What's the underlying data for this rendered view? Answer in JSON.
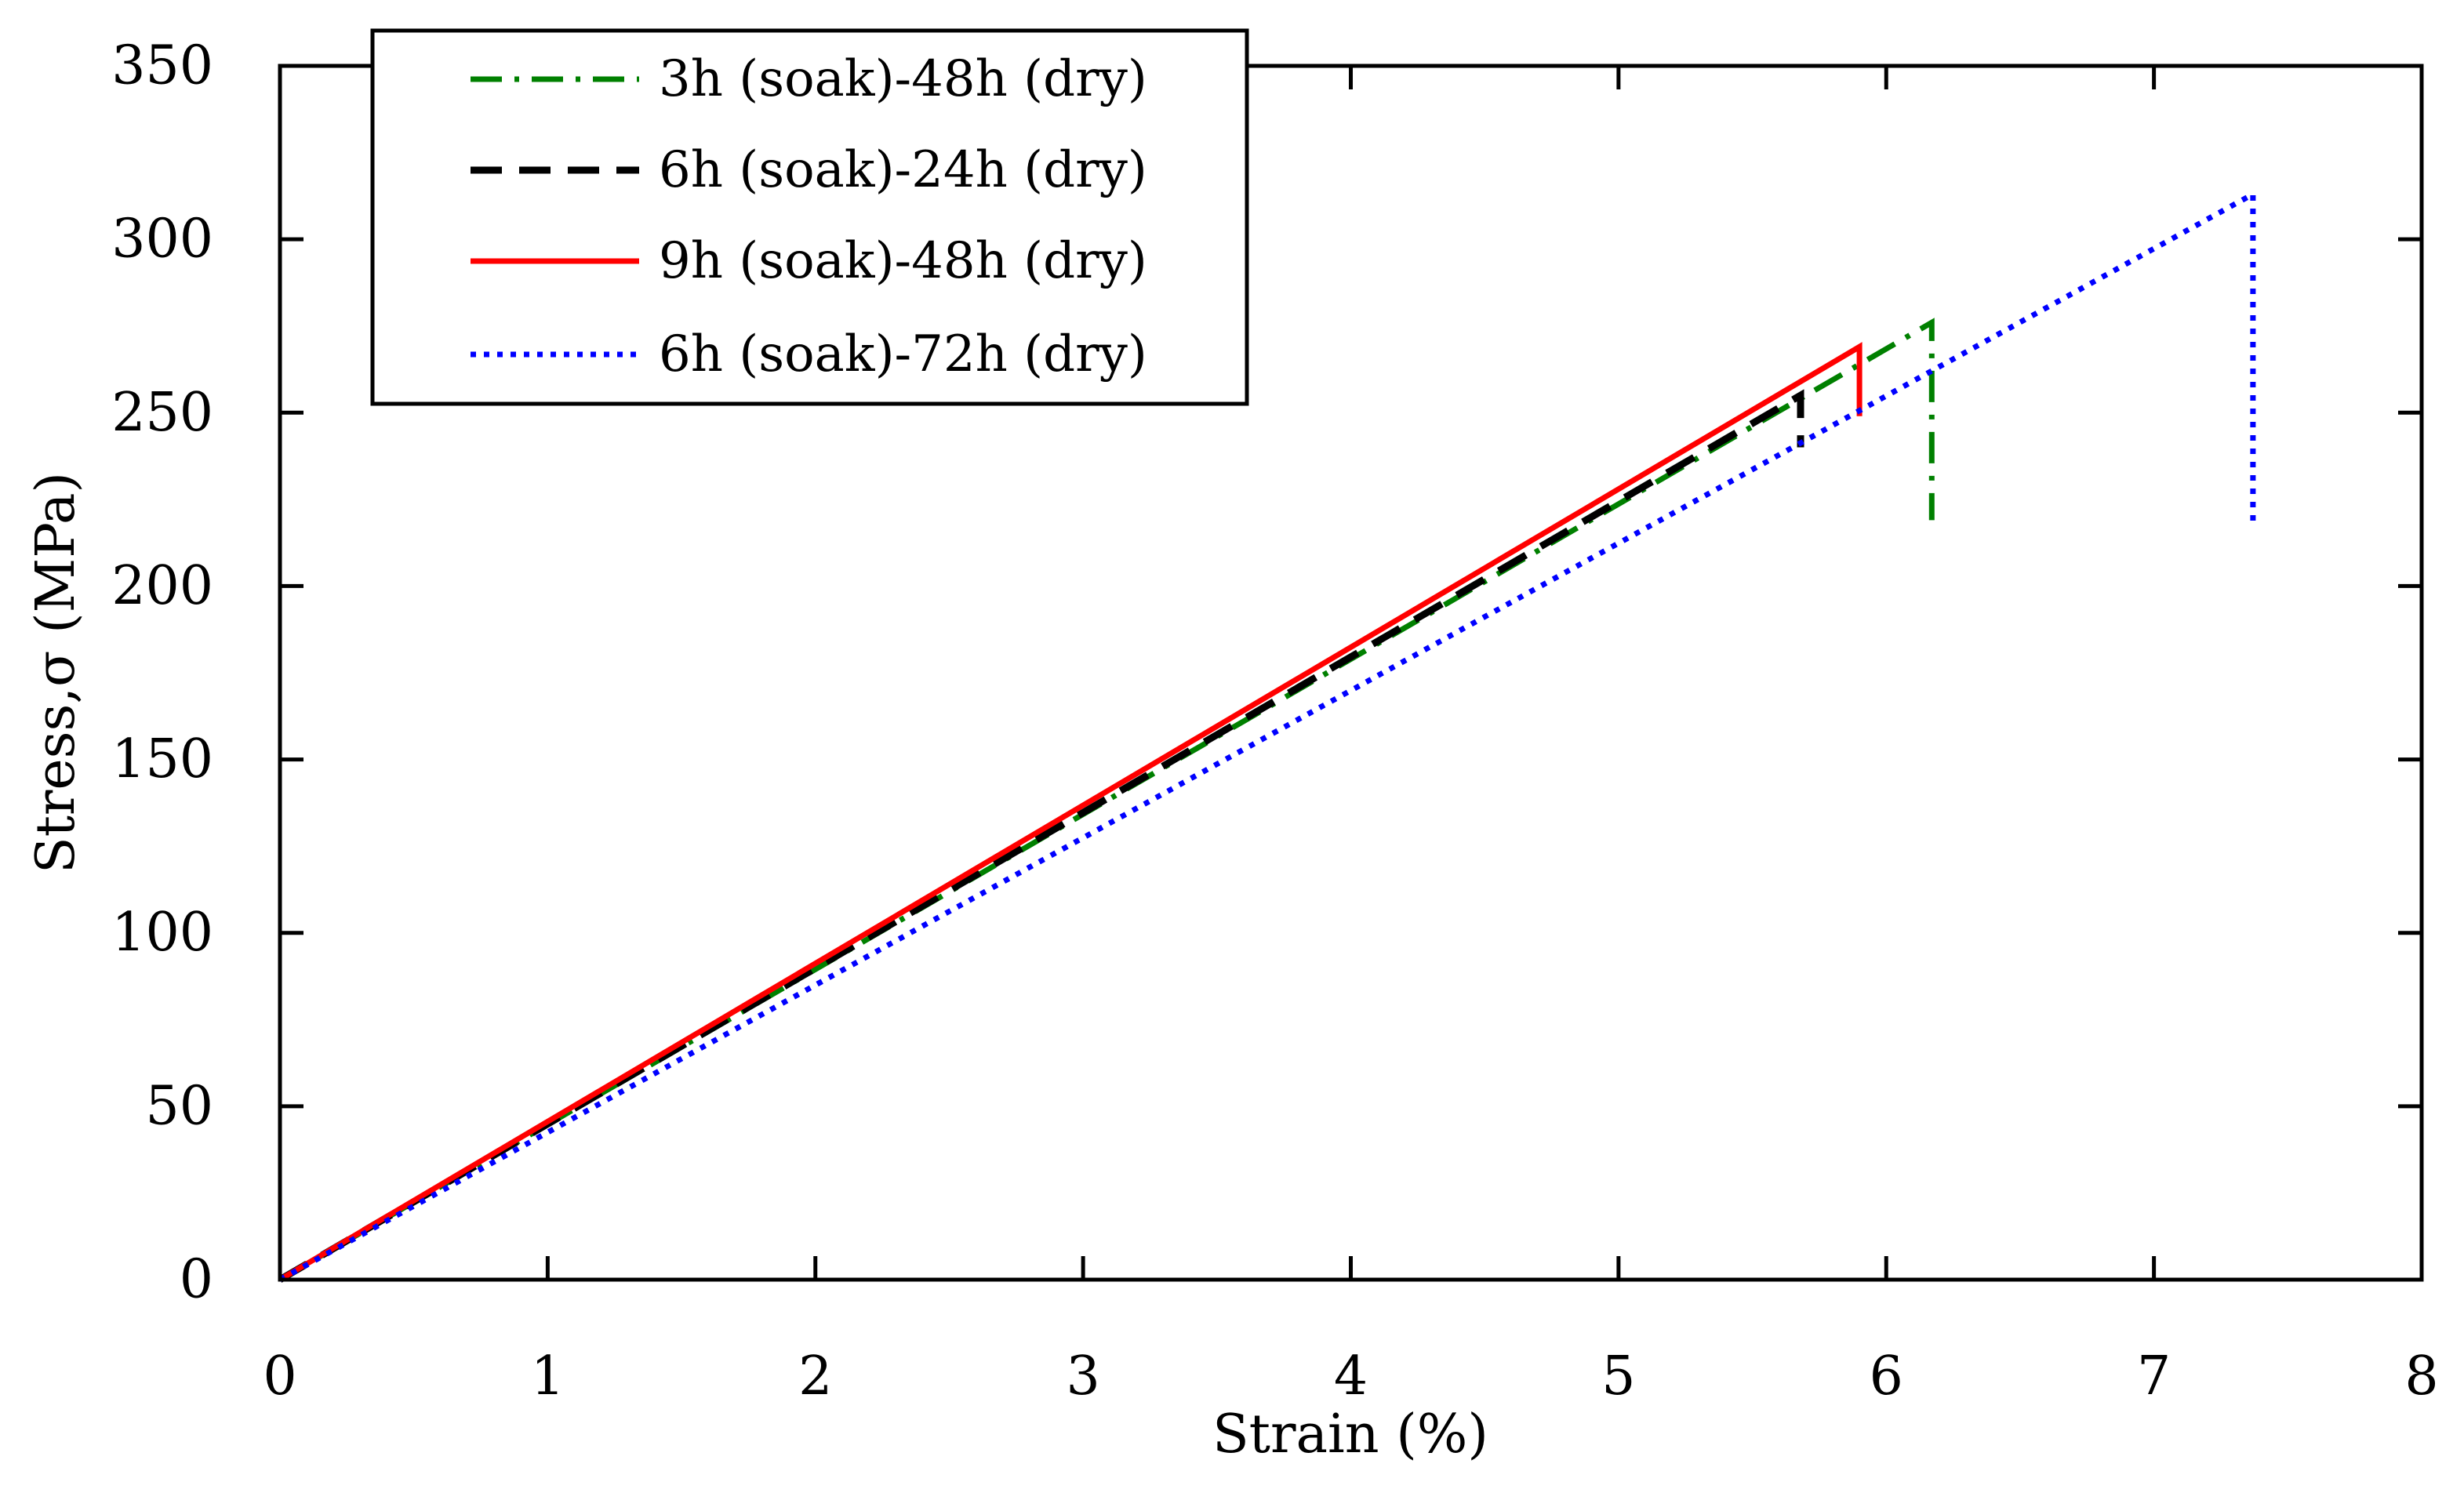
{
  "chart_data": {
    "type": "line",
    "title": "",
    "xlabel": "Strain (%)",
    "ylabel": "Stress,σ (MPa)",
    "xlim": [
      0,
      8
    ],
    "ylim": [
      0,
      350
    ],
    "xticks": [
      0,
      1,
      2,
      3,
      4,
      5,
      6,
      7,
      8
    ],
    "yticks": [
      0,
      50,
      100,
      150,
      200,
      250,
      300,
      350
    ],
    "grid": false,
    "legend_position": "top-left",
    "series": [
      {
        "name": "3h (soak)-48h (dry)",
        "color": "#008000",
        "dash": "dash-dot",
        "points": [
          [
            0,
            0
          ],
          [
            6.17,
            276
          ],
          [
            6.17,
            219
          ]
        ]
      },
      {
        "name": "6h (soak)-24h (dry)",
        "color": "#000000",
        "dash": "dashed",
        "points": [
          [
            0,
            0
          ],
          [
            5.68,
            255
          ],
          [
            5.68,
            240
          ]
        ]
      },
      {
        "name": "9h (soak)-48h (dry)",
        "color": "#ff0000",
        "dash": "solid",
        "points": [
          [
            0,
            0
          ],
          [
            5.9,
            269
          ],
          [
            5.9,
            249
          ]
        ]
      },
      {
        "name": "6h (soak)-72h (dry)",
        "color": "#0000ff",
        "dash": "dotted",
        "points": [
          [
            0,
            0
          ],
          [
            7.37,
            313
          ],
          [
            7.37,
            217
          ]
        ]
      }
    ]
  }
}
